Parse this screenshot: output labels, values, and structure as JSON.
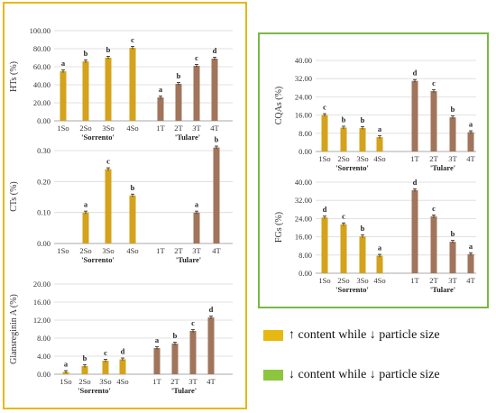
{
  "colors": {
    "yellow_box": "#e8b812",
    "green_box": "#7ab844",
    "bar_gold": "#d4a21d",
    "bar_brown": "#a0755b",
    "grid": "#d9d9d9"
  },
  "legend": [
    {
      "text": "↑ content while ↓ particle size",
      "color": "#e8b812"
    },
    {
      "text": "↓ content while ↓ particle size",
      "color": "#8cc63f"
    }
  ],
  "chart_data": [
    {
      "id": "hts",
      "type": "bar",
      "ylabel": "HTs (%)",
      "ylim": [
        0,
        100
      ],
      "yticks": [
        "0.00",
        "20.00",
        "40.00",
        "60.00",
        "80.00",
        "100.00"
      ],
      "categories": [
        "1So",
        "2So",
        "3So",
        "4So",
        "1T",
        "2T",
        "3T",
        "4T"
      ],
      "values": [
        55,
        66,
        70,
        81,
        26,
        41,
        61,
        69
      ],
      "letters": [
        "a",
        "b",
        "b",
        "c",
        "a",
        "b",
        "c",
        "d"
      ],
      "groups": [
        "'Sorrento'",
        "'Tulare'"
      ]
    },
    {
      "id": "cts",
      "type": "bar",
      "ylabel": "CTs (%)",
      "ylim": [
        0,
        0.3
      ],
      "yticks": [
        "0.00",
        "0.10",
        "0.20",
        "0.30"
      ],
      "categories": [
        "1So",
        "2So",
        "3So",
        "4So",
        "1T",
        "2T",
        "3T",
        "4T"
      ],
      "values": [
        0,
        0.1,
        0.24,
        0.155,
        0,
        0,
        0.1,
        0.31
      ],
      "letters": [
        "",
        "a",
        "c",
        "b",
        "",
        "",
        "a",
        "b"
      ],
      "groups": [
        "'Sorrento'",
        "'Tulare'"
      ]
    },
    {
      "id": "gla",
      "type": "bar",
      "ylabel": "Glansreginin A (%)",
      "ylim": [
        0,
        20
      ],
      "yticks": [
        "0.00",
        "4.00",
        "8.00",
        "12.00",
        "16.00",
        "20.00"
      ],
      "categories": [
        "1So",
        "2So",
        "3So",
        "4So",
        "1T",
        "2T",
        "3T",
        "4T"
      ],
      "values": [
        0.5,
        1.8,
        3.0,
        3.3,
        5.8,
        6.8,
        9.6,
        12.6
      ],
      "letters": [
        "a",
        "b",
        "c",
        "d",
        "a",
        "b",
        "c",
        "d"
      ],
      "groups": [
        "'Sorrento'",
        "'Tulare'"
      ]
    },
    {
      "id": "cqas",
      "type": "bar",
      "ylabel": "CQAs (%)",
      "ylim": [
        0,
        40
      ],
      "yticks": [
        "0.00",
        "8.00",
        "16.00",
        "24.00",
        "32.00",
        "40.00"
      ],
      "categories": [
        "1So",
        "2So",
        "3So",
        "4So",
        "1T",
        "2T",
        "3T",
        "4T"
      ],
      "values": [
        16,
        10.5,
        10.3,
        6.3,
        31,
        26.5,
        15,
        8.5
      ],
      "letters": [
        "c",
        "b",
        "b",
        "a",
        "d",
        "c",
        "b",
        "a"
      ],
      "groups": [
        "'Sorrento'",
        "'Tulare'"
      ]
    },
    {
      "id": "fgs",
      "type": "bar",
      "ylabel": "FGs (%)",
      "ylim": [
        0,
        40
      ],
      "yticks": [
        "0.00",
        "8.00",
        "16.00",
        "24.00",
        "32.00",
        "40.00"
      ],
      "categories": [
        "1So",
        "2So",
        "3So",
        "4So",
        "1T",
        "2T",
        "3T",
        "4T"
      ],
      "values": [
        24.5,
        21.5,
        16.2,
        7.7,
        36.5,
        25,
        13.8,
        8.4
      ],
      "letters": [
        "d",
        "c",
        "b",
        "a",
        "d",
        "c",
        "b",
        "a"
      ],
      "groups": [
        "'Sorrento'",
        "'Tulare'"
      ]
    }
  ]
}
